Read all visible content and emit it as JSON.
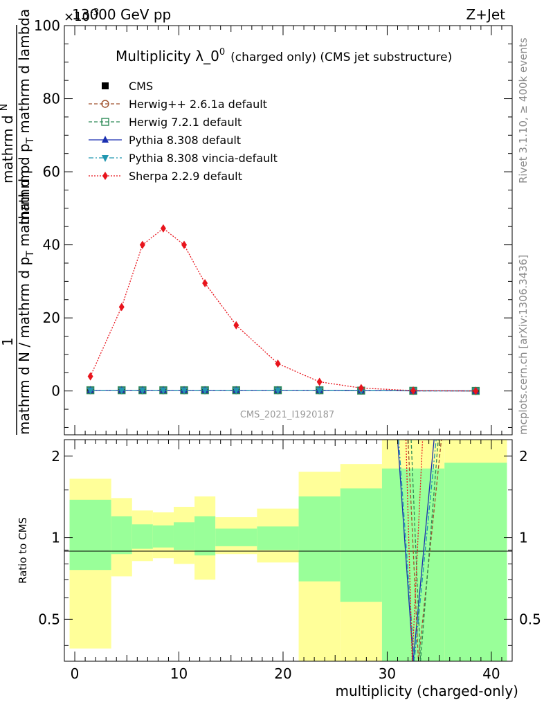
{
  "header": {
    "energy": "13000 GeV pp",
    "process": "Z+Jet",
    "exponent": "×10",
    "exponent_power": "-3"
  },
  "side_labels": {
    "rivet": "Rivet 3.1.10, ≥ 400k events",
    "mcplots": "mcplots.cern.ch [arXiv:1306.3436]"
  },
  "chart_data": [
    {
      "type": "line",
      "panel": "main",
      "title": "Multiplicity λ_0",
      "title_sup": "0",
      "title_suffix": "(charged only) (CMS jet substructure)",
      "ylabel": "1 / mathrm d N / mathrm d p_T mathrm d N / mathrm d p_T mathrm d lambda",
      "ylabel_num": "1",
      "ylabel_den": "mathrm d N / mathrm d p",
      "ylabel_den_tail": "mathrm d p",
      "ylabel_top": "mathrm d",
      "ylabel_top_N": "N",
      "ylabel_mid": "mathrm d p",
      "ylabel_mid_tail": "mathrm d lambda",
      "sub_T": "T",
      "watermark": "CMS_2021_I1920187",
      "xlim": [
        -1,
        42
      ],
      "ylim": [
        -12,
        100
      ],
      "y_unit_scale": "1e-3",
      "yticks": [
        0,
        20,
        40,
        60,
        80,
        100
      ],
      "ytick_labels": [
        "0",
        "20",
        "40",
        "60",
        "80",
        "100"
      ],
      "legend": [
        "CMS",
        "Herwig++ 2.6.1a default",
        "Herwig 7.2.1 default",
        "Pythia 8.308 default",
        "Pythia 8.308 vincia-default",
        "Sherpa 2.2.9 default"
      ],
      "x": [
        1.5,
        4.5,
        6.5,
        8.5,
        10.5,
        12.5,
        15.5,
        19.5,
        23.5,
        27.5,
        32.5,
        38.5
      ],
      "series": [
        {
          "name": "CMS",
          "color": "#000000",
          "marker": "square",
          "values": [
            0.2,
            0.2,
            0.2,
            0.2,
            0.2,
            0.2,
            0.2,
            0.2,
            0.2,
            0.1,
            0.05,
            0.02
          ]
        },
        {
          "name": "Herwig++ 2.6.1a default",
          "color": "#a0522d",
          "marker": "circle-open",
          "dash": "5,3",
          "values": [
            0.2,
            0.2,
            0.2,
            0.2,
            0.2,
            0.2,
            0.2,
            0.2,
            0.2,
            0.1,
            0.05,
            0.02
          ]
        },
        {
          "name": "Herwig 7.2.1 default",
          "color": "#2e8b57",
          "marker": "square-open",
          "dash": "5,3",
          "values": [
            0.2,
            0.2,
            0.2,
            0.2,
            0.2,
            0.2,
            0.2,
            0.2,
            0.2,
            0.1,
            0.05,
            0.02
          ]
        },
        {
          "name": "Pythia 8.308 default",
          "color": "#1a2fb0",
          "marker": "triangle-up",
          "dash": "",
          "values": [
            0.2,
            0.2,
            0.2,
            0.2,
            0.2,
            0.2,
            0.2,
            0.2,
            0.2,
            0.1,
            0.05,
            0.02
          ]
        },
        {
          "name": "Pythia 8.308 vincia-default",
          "color": "#2196b0",
          "marker": "triangle-down",
          "dash": "7,3,2,3",
          "values": [
            0.2,
            0.2,
            0.2,
            0.2,
            0.2,
            0.2,
            0.2,
            0.2,
            0.2,
            0.1,
            0.05,
            0.02
          ]
        },
        {
          "name": "Sherpa 2.2.9 default",
          "color": "#e8141c",
          "marker": "diamond",
          "dash": "2,2",
          "values": [
            4.0,
            23.0,
            40.0,
            44.5,
            40.0,
            29.5,
            18.0,
            7.5,
            2.5,
            0.8,
            0.1,
            0.0
          ]
        }
      ]
    },
    {
      "type": "line",
      "panel": "ratio",
      "ylabel": "Ratio to CMS",
      "xlabel": "multiplicity (charged-only)",
      "xlim": [
        -1,
        42
      ],
      "ylim": [
        0.35,
        2.3
      ],
      "y_scale": "log",
      "xticks": [
        0,
        10,
        20,
        30,
        40
      ],
      "xtick_labels": [
        "0",
        "10",
        "20",
        "30",
        "40"
      ],
      "yticks": [
        0.5,
        1,
        2
      ],
      "ytick_labels": [
        "0.5",
        "1",
        "2"
      ],
      "bins": [
        {
          "lo": -0.5,
          "hi": 3.5,
          "y_lo": 0.39,
          "y_hi": 1.65,
          "g_lo": 0.76,
          "g_hi": 1.38
        },
        {
          "lo": 3.5,
          "hi": 5.5,
          "y_lo": 0.72,
          "y_hi": 1.4,
          "g_lo": 0.87,
          "g_hi": 1.2
        },
        {
          "lo": 5.5,
          "hi": 7.5,
          "y_lo": 0.82,
          "y_hi": 1.26,
          "g_lo": 0.91,
          "g_hi": 1.12
        },
        {
          "lo": 7.5,
          "hi": 9.5,
          "y_lo": 0.84,
          "y_hi": 1.24,
          "g_lo": 0.92,
          "g_hi": 1.11
        },
        {
          "lo": 9.5,
          "hi": 11.5,
          "y_lo": 0.8,
          "y_hi": 1.3,
          "g_lo": 0.9,
          "g_hi": 1.14
        },
        {
          "lo": 11.5,
          "hi": 13.5,
          "y_lo": 0.7,
          "y_hi": 1.42,
          "g_lo": 0.86,
          "g_hi": 1.2
        },
        {
          "lo": 13.5,
          "hi": 17.5,
          "y_lo": 0.87,
          "y_hi": 1.19,
          "g_lo": 0.93,
          "g_hi": 1.08
        },
        {
          "lo": 17.5,
          "hi": 21.5,
          "y_lo": 0.81,
          "y_hi": 1.28,
          "g_lo": 0.9,
          "g_hi": 1.1
        },
        {
          "lo": 21.5,
          "hi": 25.5,
          "y_lo": 0.35,
          "y_hi": 1.75,
          "g_lo": 0.69,
          "g_hi": 1.42
        },
        {
          "lo": 25.5,
          "hi": 29.5,
          "y_lo": 0.35,
          "y_hi": 1.87,
          "g_lo": 0.58,
          "g_hi": 1.52
        },
        {
          "lo": 29.5,
          "hi": 35.5,
          "y_lo": 0.35,
          "y_hi": 2.3,
          "g_lo": 0.35,
          "g_hi": 1.8
        },
        {
          "lo": 35.5,
          "hi": 41.5,
          "y_lo": 0.35,
          "y_hi": 2.3,
          "g_lo": 0.35,
          "g_hi": 1.89
        }
      ],
      "lines": [
        {
          "name": "Pythia 8.308 default",
          "color": "#1a2fb0",
          "dash": "",
          "x": [
            31.0,
            32.5,
            34.5
          ],
          "y": [
            2.3,
            0.35,
            2.3
          ]
        },
        {
          "name": "Pythia 8.308 vincia-default",
          "color": "#2196b0",
          "dash": "7,3,2,3",
          "x": [
            31.1,
            32.6,
            34.7
          ],
          "y": [
            2.3,
            0.35,
            2.3
          ]
        },
        {
          "name": "Herwig++ 2.6.1a default",
          "color": "#a0522d",
          "dash": "5,3",
          "x": [
            32.0,
            33.0,
            35.2
          ],
          "y": [
            2.3,
            0.35,
            2.3
          ]
        },
        {
          "name": "Herwig 7.2.1 default",
          "color": "#2e8b57",
          "dash": "5,3",
          "x": [
            32.3,
            33.2,
            34.9
          ],
          "y": [
            2.3,
            0.35,
            2.3
          ]
        },
        {
          "name": "Sherpa 2.2.9 default",
          "color": "#e8141c",
          "dash": "2,2",
          "x": [
            31.8,
            32.4,
            33.4
          ],
          "y": [
            2.3,
            0.35,
            2.3
          ]
        }
      ]
    }
  ]
}
